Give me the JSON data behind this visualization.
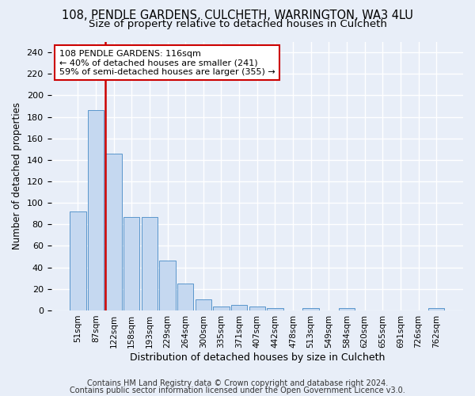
{
  "title1": "108, PENDLE GARDENS, CULCHETH, WARRINGTON, WA3 4LU",
  "title2": "Size of property relative to detached houses in Culcheth",
  "xlabel": "Distribution of detached houses by size in Culcheth",
  "ylabel": "Number of detached properties",
  "footer1": "Contains HM Land Registry data © Crown copyright and database right 2024.",
  "footer2": "Contains public sector information licensed under the Open Government Licence v3.0.",
  "annotation_title": "108 PENDLE GARDENS: 116sqm",
  "annotation_line2": "← 40% of detached houses are smaller (241)",
  "annotation_line3": "59% of semi-detached houses are larger (355) →",
  "bar_categories": [
    "51sqm",
    "87sqm",
    "122sqm",
    "158sqm",
    "193sqm",
    "229sqm",
    "264sqm",
    "300sqm",
    "335sqm",
    "371sqm",
    "407sqm",
    "442sqm",
    "478sqm",
    "513sqm",
    "549sqm",
    "584sqm",
    "620sqm",
    "655sqm",
    "691sqm",
    "726sqm",
    "762sqm"
  ],
  "bar_values": [
    92,
    186,
    146,
    87,
    87,
    46,
    25,
    10,
    4,
    5,
    4,
    2,
    0,
    2,
    0,
    2,
    0,
    0,
    0,
    0,
    2
  ],
  "bar_color": "#c5d8f0",
  "bar_edge_color": "#5a96cc",
  "vline_color": "#cc0000",
  "vline_x_index": 2,
  "annotation_box_color": "#cc0000",
  "annotation_box_fill": "#ffffff",
  "background_color": "#e8eef8",
  "plot_bg_color": "#e8eef8",
  "ylim": [
    0,
    250
  ],
  "yticks": [
    0,
    20,
    40,
    60,
    80,
    100,
    120,
    140,
    160,
    180,
    200,
    220,
    240
  ],
  "title1_fontsize": 10.5,
  "title2_fontsize": 9.5,
  "xlabel_fontsize": 9,
  "ylabel_fontsize": 8.5,
  "tick_fontsize": 8,
  "xtick_fontsize": 7.5,
  "footer_fontsize": 7,
  "annotation_fontsize": 8
}
